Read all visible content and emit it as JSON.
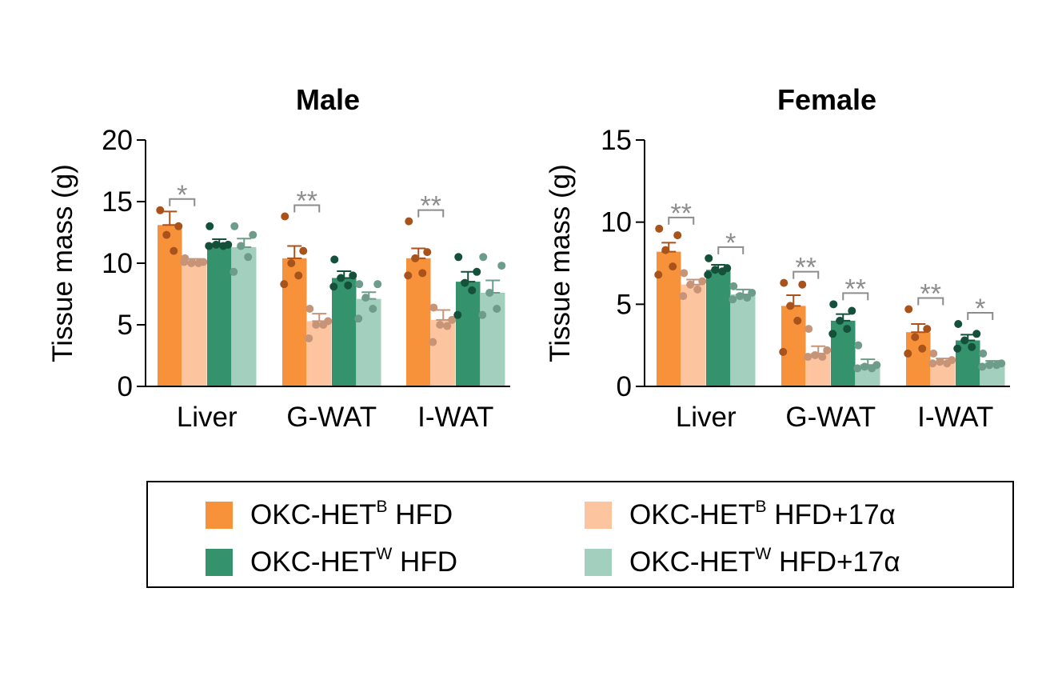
{
  "colors": {
    "b_hfd": "#F7923A",
    "b_hfd_17a": "#FCC49F",
    "w_hfd": "#34926C",
    "w_hfd_17a": "#A3D0BE",
    "b_hfd_dot": "#A8521C",
    "b_hfd_17a_dot": "#C79478",
    "w_hfd_dot": "#14503A",
    "w_hfd_17a_dot": "#6D9C8A",
    "significance": "#8C8C8C"
  },
  "chart_data": [
    {
      "type": "bar",
      "title": "Male",
      "ylabel": "Tissue mass (g)",
      "ylim": [
        0,
        20
      ],
      "yticks": [
        "0",
        "5",
        "10",
        "15",
        "20"
      ],
      "categories": [
        "Liver",
        "G-WAT",
        "I-WAT"
      ],
      "series": [
        {
          "key": "b_hfd",
          "means": [
            13.1,
            10.4,
            10.4
          ],
          "sem": [
            1.1,
            1.0,
            0.8
          ],
          "points": [
            [
              14.3,
              13.0,
              12.3,
              11.0
            ],
            [
              13.8,
              11.0,
              10.0,
              9.0,
              8.3
            ],
            [
              13.4,
              10.9,
              10.4,
              9.2,
              9.0
            ]
          ]
        },
        {
          "key": "b_hfd_17a",
          "means": [
            10.1,
            5.3,
            5.4
          ],
          "sem": [
            0.25,
            0.6,
            0.8
          ],
          "points": [
            [
              10.4,
              10.1,
              10.0,
              10.0,
              10.1
            ],
            [
              6.3,
              5.3,
              5.0,
              5.0,
              3.9
            ],
            [
              6.4,
              5.4,
              5.0,
              4.9,
              3.6
            ]
          ]
        },
        {
          "key": "w_hfd",
          "means": [
            11.6,
            8.8,
            8.5
          ],
          "sem": [
            0.35,
            0.55,
            0.8
          ],
          "points": [
            [
              13.0,
              11.5,
              11.5,
              11.4,
              11.4
            ],
            [
              10.3,
              9.0,
              8.8,
              8.2,
              8.1
            ],
            [
              10.5,
              9.3,
              8.4,
              7.8,
              5.8
            ]
          ]
        },
        {
          "key": "w_hfd_17a",
          "means": [
            11.3,
            7.1,
            7.6
          ],
          "sem": [
            0.7,
            0.55,
            1.0
          ],
          "points": [
            [
              13.0,
              12.3,
              11.4,
              10.5,
              9.3
            ],
            [
              8.3,
              8.3,
              7.2,
              6.3,
              5.5
            ],
            [
              10.5,
              9.8,
              7.6,
              6.3,
              5.8
            ]
          ]
        }
      ],
      "significance": [
        {
          "category": "Liver",
          "pair": [
            "b_hfd",
            "b_hfd_17a"
          ],
          "label": "*"
        },
        {
          "category": "G-WAT",
          "pair": [
            "b_hfd",
            "b_hfd_17a"
          ],
          "label": "**"
        },
        {
          "category": "I-WAT",
          "pair": [
            "b_hfd",
            "b_hfd_17a"
          ],
          "label": "**"
        }
      ]
    },
    {
      "type": "bar",
      "title": "Female",
      "ylabel": "Tissue mass (g)",
      "ylim": [
        0,
        15
      ],
      "yticks": [
        "0",
        "5",
        "10",
        "15"
      ],
      "categories": [
        "Liver",
        "G-WAT",
        "I-WAT"
      ],
      "series": [
        {
          "key": "b_hfd",
          "means": [
            8.2,
            4.9,
            3.3
          ],
          "sem": [
            0.55,
            0.65,
            0.5
          ],
          "points": [
            [
              9.6,
              9.2,
              8.3,
              7.3,
              6.8
            ],
            [
              6.3,
              6.2,
              4.9,
              4.0,
              2.1
            ],
            [
              4.7,
              3.5,
              3.0,
              2.3,
              2.0
            ]
          ]
        },
        {
          "key": "b_hfd_17a",
          "means": [
            6.2,
            2.0,
            1.5
          ],
          "sem": [
            0.3,
            0.45,
            0.2
          ],
          "points": [
            [
              6.9,
              6.4,
              6.2,
              5.9,
              5.5
            ],
            [
              3.5,
              2.2,
              1.9,
              1.8,
              1.8
            ],
            [
              2.0,
              1.6,
              1.5,
              1.4,
              1.4
            ]
          ]
        },
        {
          "key": "w_hfd",
          "means": [
            7.1,
            4.0,
            2.8
          ],
          "sem": [
            0.3,
            0.4,
            0.35
          ],
          "points": [
            [
              7.8,
              7.2,
              7.1,
              7.0,
              6.8
            ],
            [
              5.0,
              4.6,
              4.0,
              3.5,
              3.2
            ],
            [
              3.8,
              3.2,
              2.8,
              2.4,
              2.3
            ]
          ]
        },
        {
          "key": "w_hfd_17a",
          "means": [
            5.6,
            1.3,
            1.4
          ],
          "sem": [
            0.3,
            0.35,
            0.15
          ],
          "points": [
            [
              6.1,
              5.7,
              5.5,
              5.4,
              5.3
            ],
            [
              2.5,
              1.3,
              1.2,
              1.1,
              1.1
            ],
            [
              2.0,
              1.4,
              1.3,
              1.3,
              1.2
            ]
          ]
        }
      ],
      "significance": [
        {
          "category": "Liver",
          "pair": [
            "b_hfd",
            "b_hfd_17a"
          ],
          "label": "**"
        },
        {
          "category": "Liver",
          "pair": [
            "w_hfd",
            "w_hfd_17a"
          ],
          "label": "*"
        },
        {
          "category": "G-WAT",
          "pair": [
            "b_hfd",
            "b_hfd_17a"
          ],
          "label": "**"
        },
        {
          "category": "G-WAT",
          "pair": [
            "w_hfd",
            "w_hfd_17a"
          ],
          "label": "**"
        },
        {
          "category": "I-WAT",
          "pair": [
            "b_hfd",
            "b_hfd_17a"
          ],
          "label": "**"
        },
        {
          "category": "I-WAT",
          "pair": [
            "w_hfd",
            "w_hfd_17a"
          ],
          "label": "*"
        }
      ]
    }
  ],
  "legend": [
    {
      "key": "b_hfd",
      "prefix": "OKC-HET",
      "sup": "B",
      "suffix": " HFD"
    },
    {
      "key": "b_hfd_17a",
      "prefix": "OKC-HET",
      "sup": "B",
      "suffix": " HFD+17α"
    },
    {
      "key": "w_hfd",
      "prefix": "OKC-HET",
      "sup": "W",
      "suffix": " HFD"
    },
    {
      "key": "w_hfd_17a",
      "prefix": "OKC-HET",
      "sup": "W",
      "suffix": " HFD+17α"
    }
  ]
}
